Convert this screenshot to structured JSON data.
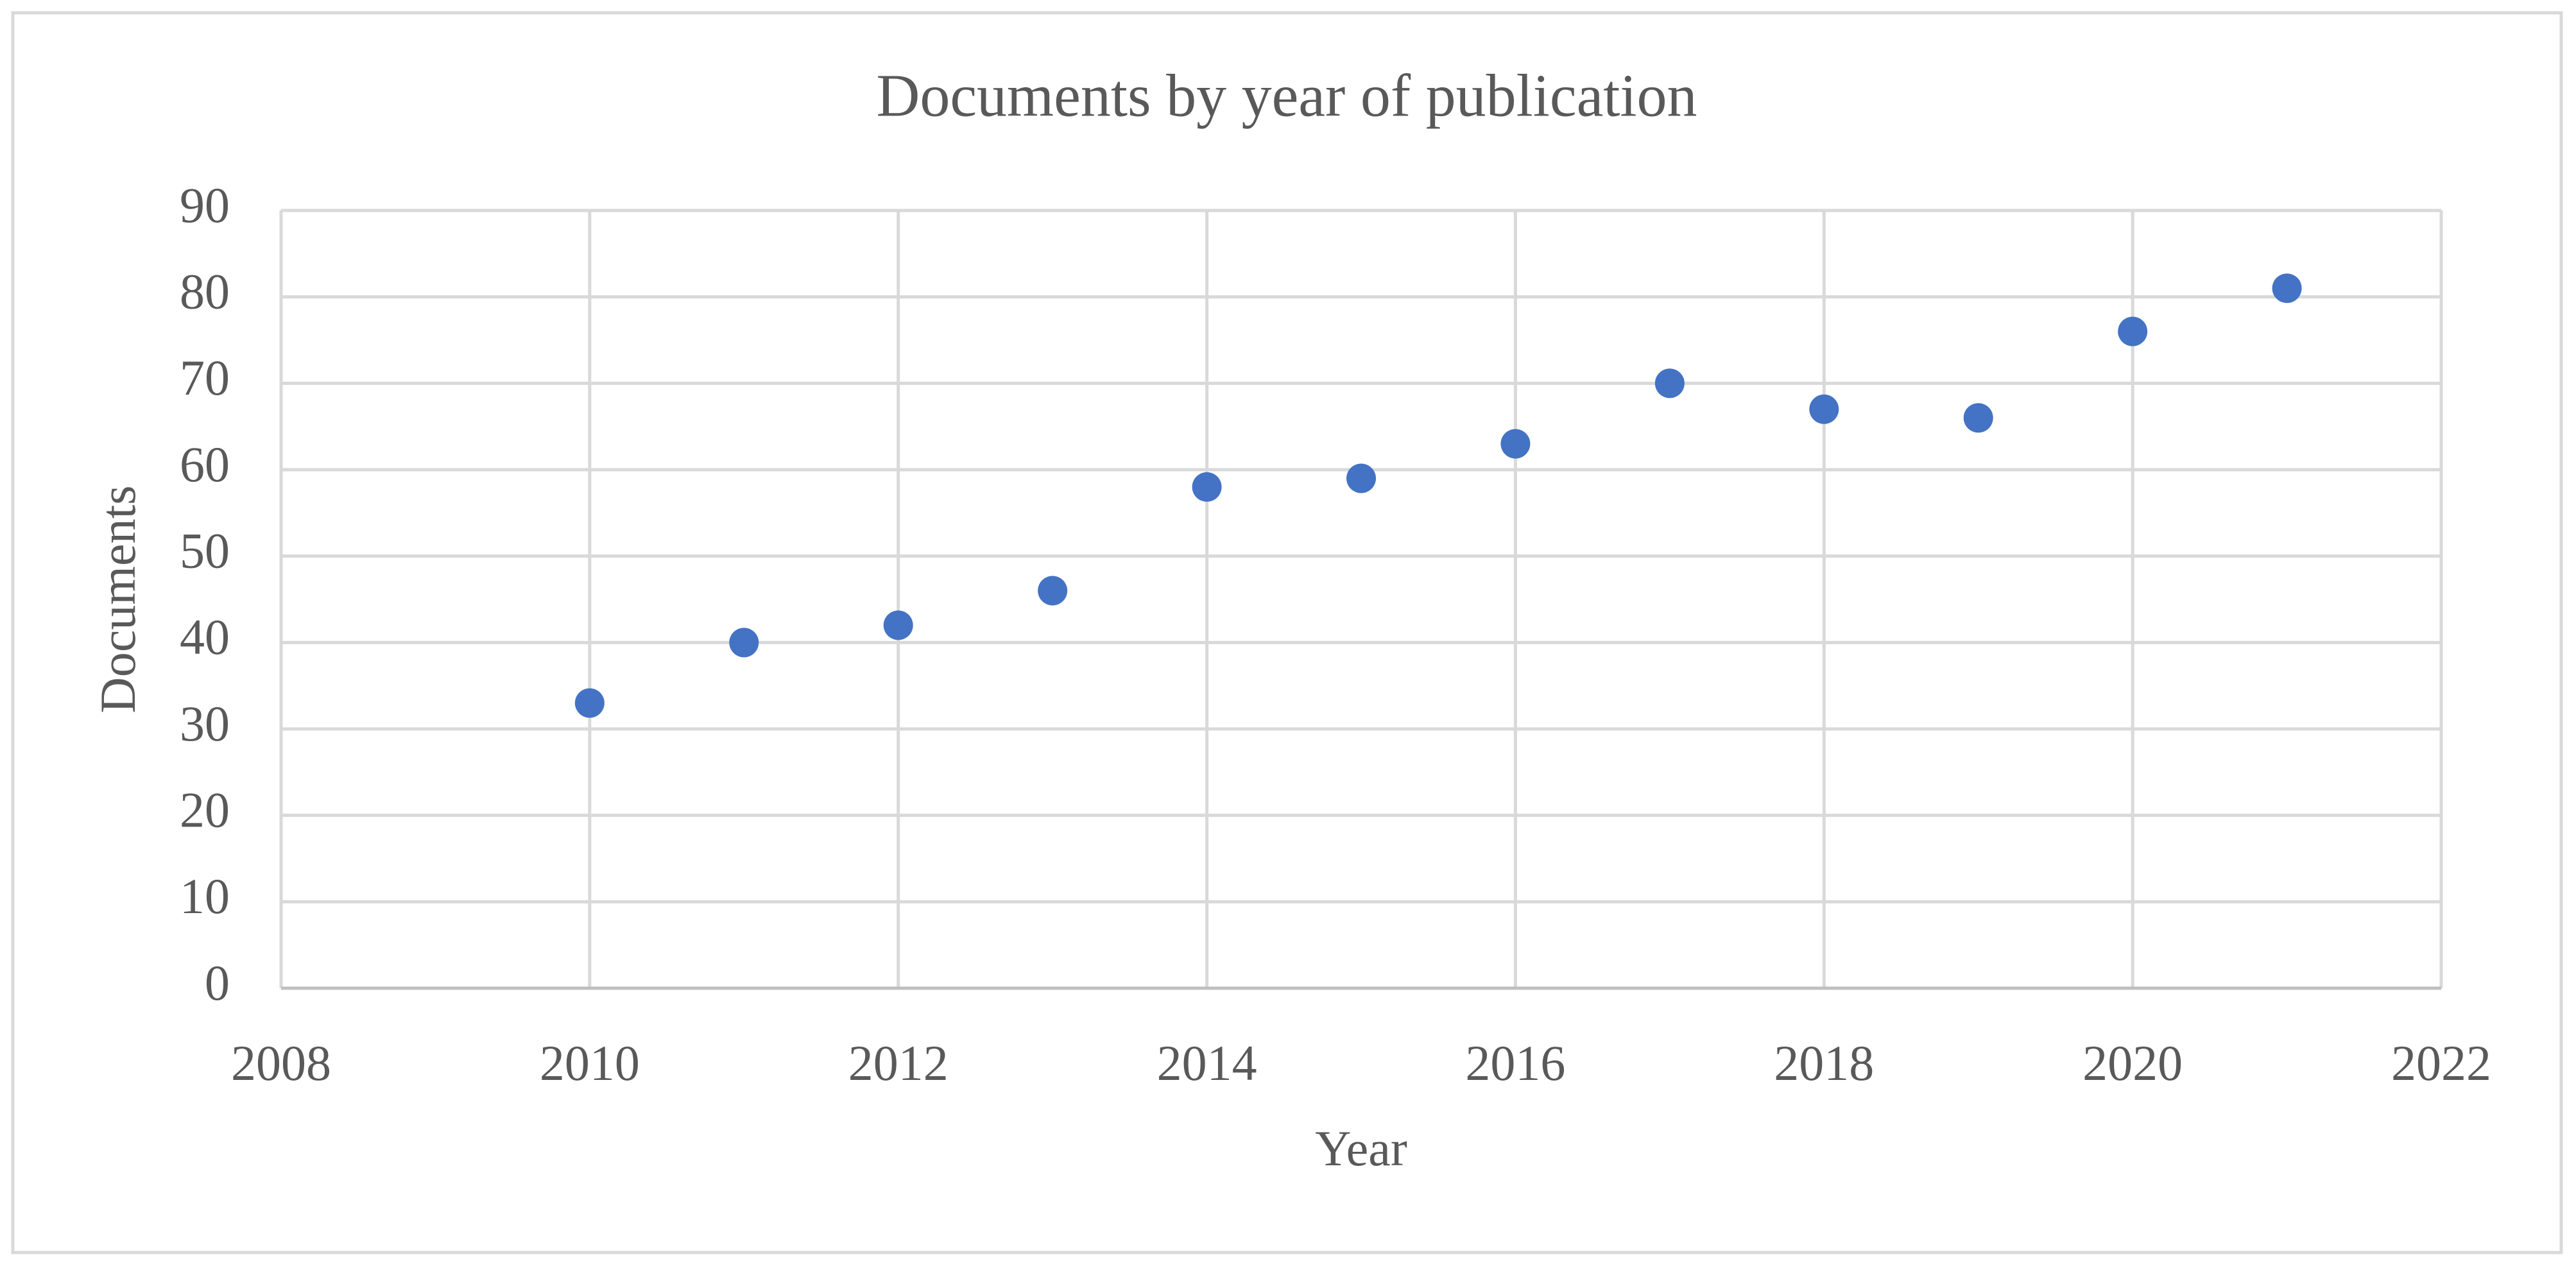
{
  "chart_data": {
    "type": "scatter",
    "title": "Documents by year of publication",
    "x_label": "Year",
    "y_label": "Documents",
    "series": [
      {
        "name": "Documents",
        "color": "#4472c4",
        "x": [
          2010,
          2011,
          2012,
          2013,
          2014,
          2015,
          2016,
          2017,
          2018,
          2019,
          2020,
          2021
        ],
        "values": [
          33,
          40,
          42,
          46,
          58,
          59,
          63,
          70,
          67,
          66,
          76,
          81
        ]
      }
    ],
    "xlim": [
      2008,
      2022
    ],
    "xticks": [
      2008,
      2010,
      2012,
      2014,
      2016,
      2018,
      2020,
      2022
    ],
    "ylim": [
      0,
      90
    ],
    "yticks": [
      0,
      10,
      20,
      30,
      40,
      50,
      60,
      70,
      80,
      90
    ],
    "grid": true
  }
}
